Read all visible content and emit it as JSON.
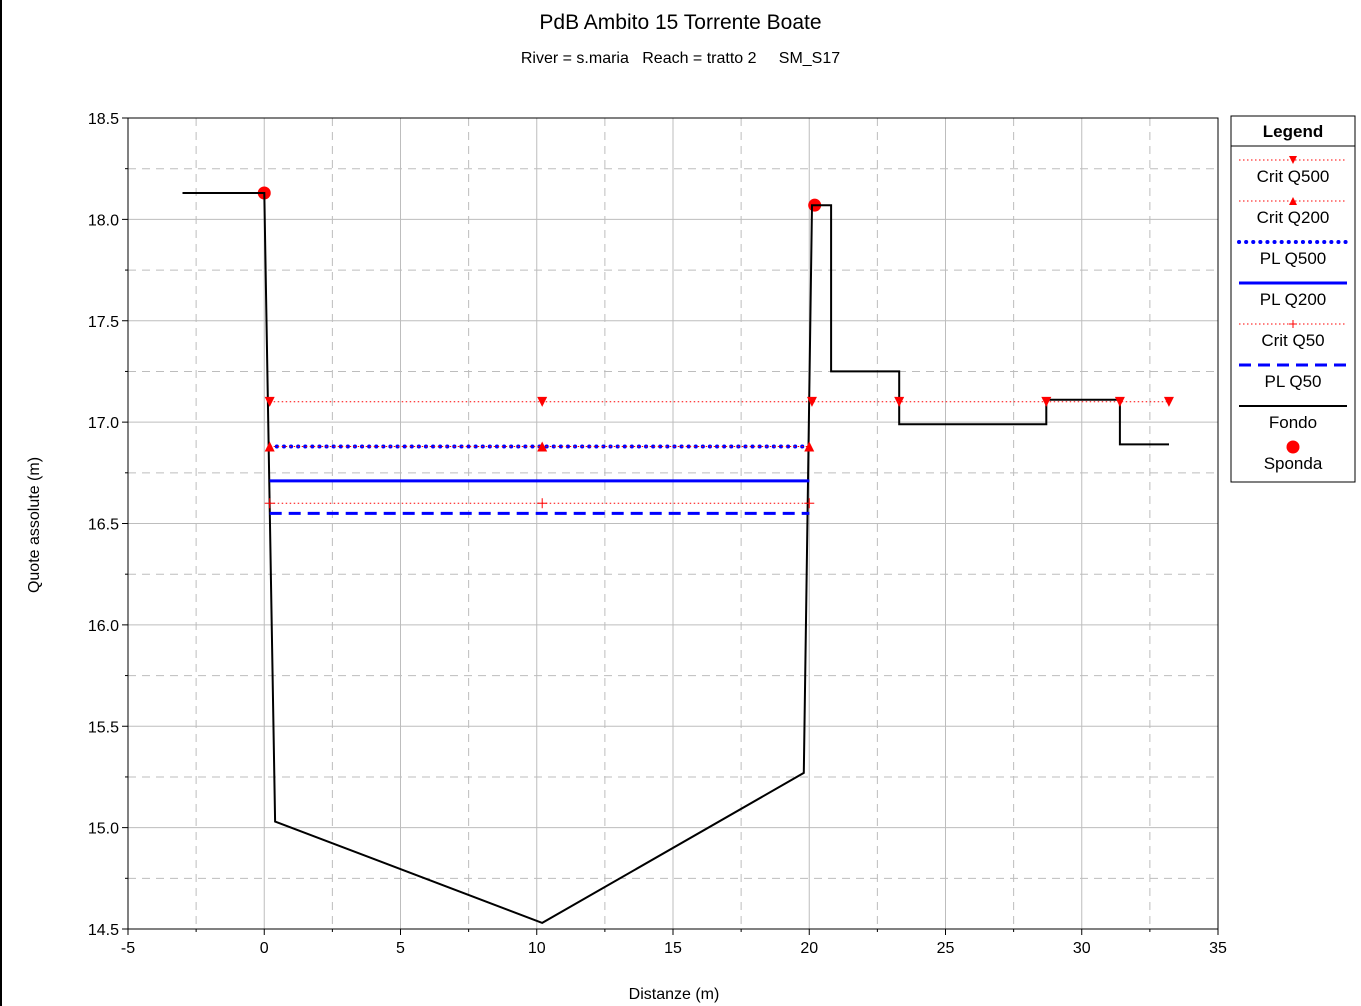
{
  "chart_data": {
    "type": "line",
    "title": "PdB Ambito 15 Torrente Boate",
    "subtitle_parts": [
      "River = s.maria",
      "Reach = tratto 2",
      "SM_S17"
    ],
    "xlabel": "Distanze (m)",
    "ylabel": "Quote assolute (m)",
    "xlim": [
      -5,
      35
    ],
    "ylim": [
      14.5,
      18.5
    ],
    "xticks": [
      -5,
      0,
      5,
      10,
      15,
      20,
      25,
      30,
      35
    ],
    "yticks": [
      14.5,
      15.0,
      15.5,
      16.0,
      16.5,
      17.0,
      17.5,
      18.0,
      18.5
    ],
    "grid": true,
    "legend": {
      "title": "Legend",
      "position": "right",
      "entries": [
        "Crit Q500",
        "Crit Q200",
        "PL Q500",
        "PL Q200",
        "Crit Q50",
        "PL Q50",
        "Fondo",
        "Sponda"
      ]
    },
    "colors": {
      "red": "#ff0000",
      "blue": "#0000ff",
      "black": "#000000"
    },
    "series": [
      {
        "name": "Crit Q500",
        "style": "dotted",
        "marker": "triangle-down",
        "color": "#ff0000",
        "x": [
          0.2,
          20.1,
          23.3,
          28.7,
          31.4,
          33.2
        ],
        "y": [
          17.1,
          17.1,
          17.1,
          17.1,
          17.1,
          17.1
        ],
        "marker_x": [
          0.2,
          10.2,
          20.1,
          23.3,
          28.7,
          31.4,
          33.2
        ]
      },
      {
        "name": "Crit Q200",
        "style": "dotted",
        "marker": "triangle-up",
        "color": "#ff0000",
        "x": [
          0.2,
          20.0
        ],
        "y": [
          16.88,
          16.88
        ],
        "marker_x": [
          0.2,
          10.2,
          20.0
        ]
      },
      {
        "name": "PL Q500",
        "style": "dots",
        "color": "#0000ff",
        "x": [
          0.2,
          20.0
        ],
        "y": [
          16.88,
          16.88
        ]
      },
      {
        "name": "PL Q200",
        "style": "solid",
        "color": "#0000ff",
        "x": [
          0.2,
          20.0
        ],
        "y": [
          16.71,
          16.71
        ]
      },
      {
        "name": "Crit Q50",
        "style": "dotted",
        "marker": "plus",
        "color": "#ff0000",
        "x": [
          0.2,
          20.0
        ],
        "y": [
          16.6,
          16.6
        ],
        "marker_x": [
          0.2,
          10.2,
          20.0
        ]
      },
      {
        "name": "PL Q50",
        "style": "dashed",
        "color": "#0000ff",
        "x": [
          0.2,
          20.0
        ],
        "y": [
          16.55,
          16.55
        ]
      },
      {
        "name": "Fondo",
        "style": "solid",
        "color": "#000000",
        "x": [
          -3.0,
          0.0,
          0.4,
          10.2,
          19.8,
          20.1,
          20.8,
          20.8,
          23.3,
          23.3,
          28.7,
          28.7,
          31.4,
          31.4,
          33.2
        ],
        "y": [
          18.13,
          18.13,
          15.03,
          14.53,
          15.27,
          18.07,
          18.07,
          17.25,
          17.25,
          16.99,
          16.99,
          17.11,
          17.11,
          16.89,
          16.89
        ]
      },
      {
        "name": "Sponda",
        "style": "marker",
        "marker": "circle",
        "color": "#ff0000",
        "x": [
          0.0,
          20.2
        ],
        "y": [
          18.13,
          18.07
        ]
      }
    ]
  }
}
